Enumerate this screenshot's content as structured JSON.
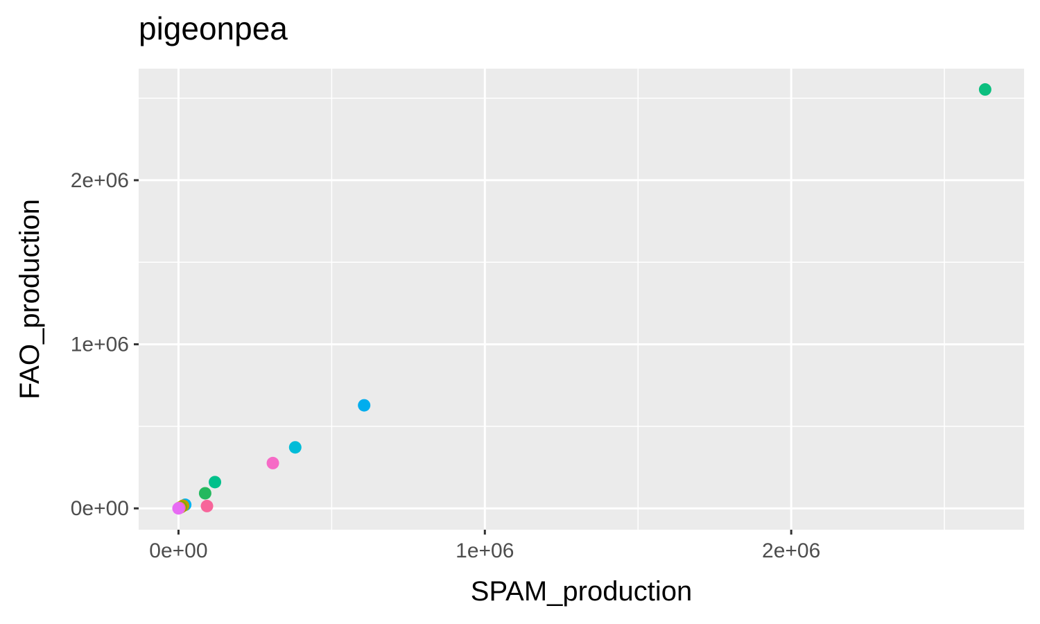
{
  "chart_data": {
    "type": "scatter",
    "title": "pigeonpea",
    "xlabel": "SPAM_production",
    "ylabel": "FAO_production",
    "xlim": [
      -130000,
      2760000
    ],
    "ylim": [
      -130000,
      2680000
    ],
    "x_ticks": [
      {
        "value": 0,
        "label": "0e+00"
      },
      {
        "value": 1000000,
        "label": "1e+06"
      },
      {
        "value": 2000000,
        "label": "2e+06"
      }
    ],
    "y_ticks": [
      {
        "value": 0,
        "label": "0e+00"
      },
      {
        "value": 1000000,
        "label": "1e+06"
      },
      {
        "value": 2000000,
        "label": "2e+06"
      }
    ],
    "x_minor": [
      500000,
      1500000,
      2500000
    ],
    "y_minor": [
      500000,
      1500000,
      2500000
    ],
    "grid": true,
    "legend": "none",
    "background": "#ebebeb",
    "points": [
      {
        "x": 2633000,
        "y": 2553000,
        "color": "#0cbf7f"
      },
      {
        "x": 606000,
        "y": 628000,
        "color": "#00adee"
      },
      {
        "x": 381000,
        "y": 372000,
        "color": "#00bcd8"
      },
      {
        "x": 308000,
        "y": 276000,
        "color": "#f66ac6"
      },
      {
        "x": 119000,
        "y": 160000,
        "color": "#00c08b"
      },
      {
        "x": 87000,
        "y": 92000,
        "color": "#24b85e"
      },
      {
        "x": 93000,
        "y": 14000,
        "color": "#f7659a"
      },
      {
        "x": 22000,
        "y": 22000,
        "color": "#00b3f0"
      },
      {
        "x": 15000,
        "y": 16000,
        "color": "#c39a00"
      },
      {
        "x": 8000,
        "y": 8000,
        "color": "#7cae00"
      },
      {
        "x": 3000,
        "y": 3000,
        "color": "#ff6c91"
      },
      {
        "x": 0,
        "y": 0,
        "color": "#e76bf3"
      }
    ]
  }
}
